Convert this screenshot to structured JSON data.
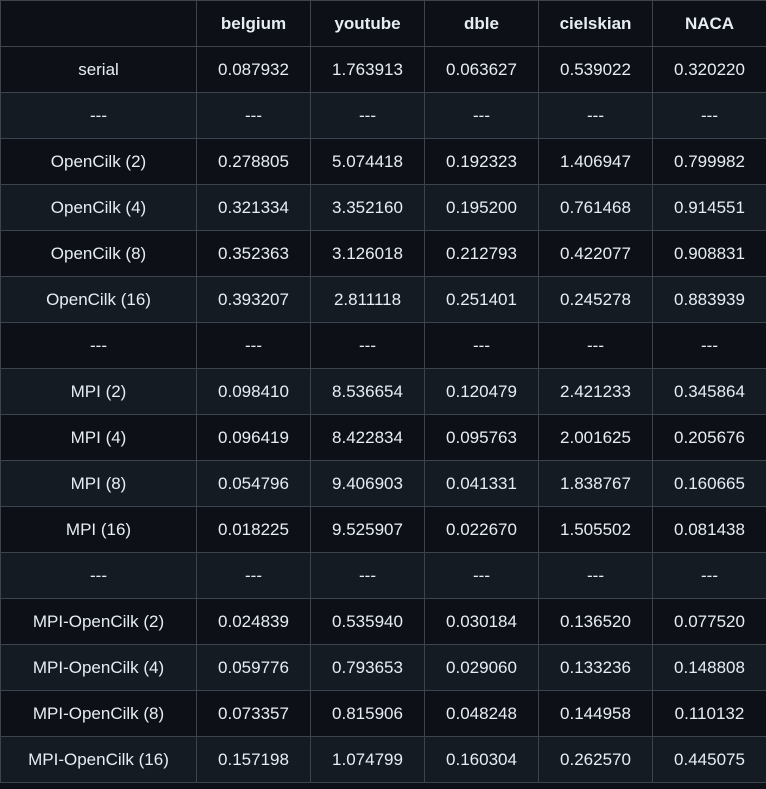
{
  "table": {
    "headers": [
      "",
      "belgium",
      "youtube",
      "dble",
      "cielskian",
      "NACA"
    ],
    "rows": [
      [
        "serial",
        "0.087932",
        "1.763913",
        "0.063627",
        "0.539022",
        "0.320220"
      ],
      [
        "---",
        "---",
        "---",
        "---",
        "---",
        "---"
      ],
      [
        "OpenCilk (2)",
        "0.278805",
        "5.074418",
        "0.192323",
        "1.406947",
        "0.799982"
      ],
      [
        "OpenCilk (4)",
        "0.321334",
        "3.352160",
        "0.195200",
        "0.761468",
        "0.914551"
      ],
      [
        "OpenCilk (8)",
        "0.352363",
        "3.126018",
        "0.212793",
        "0.422077",
        "0.908831"
      ],
      [
        "OpenCilk (16)",
        "0.393207",
        "2.811118",
        "0.251401",
        "0.245278",
        "0.883939"
      ],
      [
        "---",
        "---",
        "---",
        "---",
        "---",
        "---"
      ],
      [
        "MPI (2)",
        "0.098410",
        "8.536654",
        "0.120479",
        "2.421233",
        "0.345864"
      ],
      [
        "MPI (4)",
        "0.096419",
        "8.422834",
        "0.095763",
        "2.001625",
        "0.205676"
      ],
      [
        "MPI (8)",
        "0.054796",
        "9.406903",
        "0.041331",
        "1.838767",
        "0.160665"
      ],
      [
        "MPI (16)",
        "0.018225",
        "9.525907",
        "0.022670",
        "1.505502",
        "0.081438"
      ],
      [
        "---",
        "---",
        "---",
        "---",
        "---",
        "---"
      ],
      [
        "MPI-OpenCilk (2)",
        "0.024839",
        "0.535940",
        "0.030184",
        "0.136520",
        "0.077520"
      ],
      [
        "MPI-OpenCilk (4)",
        "0.059776",
        "0.793653",
        "0.029060",
        "0.133236",
        "0.148808"
      ],
      [
        "MPI-OpenCilk (8)",
        "0.073357",
        "0.815906",
        "0.048248",
        "0.144958",
        "0.110132"
      ],
      [
        "MPI-OpenCilk (16)",
        "0.157198",
        "1.074799",
        "0.160304",
        "0.262570",
        "0.445075"
      ]
    ]
  },
  "colors": {
    "background": "#0d1117",
    "stripe": "#151b23",
    "border": "#3d444d",
    "text": "#e6edf3"
  }
}
